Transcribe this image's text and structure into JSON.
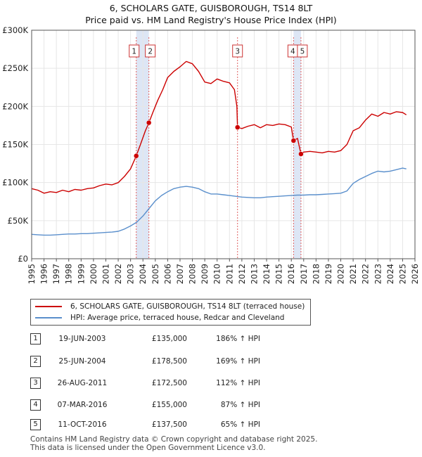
{
  "title_line1": "6, SCHOLARS GATE, GUISBOROUGH, TS14 8LT",
  "title_line2": "Price paid vs. HM Land Registry's House Price Index (HPI)",
  "colors": {
    "price": "#cc0000",
    "hpi": "#5a8fcc",
    "shade": "#dde6f5",
    "grid": "#e6e6e6",
    "vline": "#e06060"
  },
  "legend": {
    "price_label": "6, SCHOLARS GATE, GUISBOROUGH, TS14 8LT (terraced house)",
    "hpi_label": "HPI: Average price, terraced house, Redcar and Cleveland"
  },
  "sales": [
    {
      "num": "1",
      "date": "19-JUN-2003",
      "price": "£135,000",
      "hpi": "186% ↑ HPI"
    },
    {
      "num": "2",
      "date": "25-JUN-2004",
      "price": "£178,500",
      "hpi": "169% ↑ HPI"
    },
    {
      "num": "3",
      "date": "26-AUG-2011",
      "price": "£172,500",
      "hpi": "112% ↑ HPI"
    },
    {
      "num": "4",
      "date": "07-MAR-2016",
      "price": "£155,000",
      "hpi": "87% ↑ HPI"
    },
    {
      "num": "5",
      "date": "11-OCT-2016",
      "price": "£137,500",
      "hpi": "65% ↑ HPI"
    }
  ],
  "footer_line1": "Contains HM Land Registry data © Crown copyright and database right 2025.",
  "footer_line2": "This data is licensed under the Open Government Licence v3.0.",
  "chart_data": {
    "type": "line",
    "title": "Price paid vs. HM Land Registry's House Price Index (HPI)",
    "xlabel": "",
    "ylabel": "",
    "xlim": [
      1995,
      2026
    ],
    "ylim": [
      0,
      300000
    ],
    "x_ticks": [
      "1995",
      "1996",
      "1997",
      "1998",
      "1999",
      "2000",
      "2001",
      "2002",
      "2003",
      "2004",
      "2005",
      "2006",
      "2007",
      "2008",
      "2009",
      "2010",
      "2011",
      "2012",
      "2013",
      "2014",
      "2015",
      "2016",
      "2017",
      "2018",
      "2019",
      "2020",
      "2021",
      "2022",
      "2023",
      "2024",
      "2025",
      "2026"
    ],
    "y_ticks": [
      {
        "value": 0,
        "label": "£0"
      },
      {
        "value": 50000,
        "label": "£50K"
      },
      {
        "value": 100000,
        "label": "£100K"
      },
      {
        "value": 150000,
        "label": "£150K"
      },
      {
        "value": 200000,
        "label": "£200K"
      },
      {
        "value": 250000,
        "label": "£250K"
      },
      {
        "value": 300000,
        "label": "£300K"
      }
    ],
    "shaded_ranges": [
      [
        2003.46,
        2004.48
      ],
      [
        2016.18,
        2016.78
      ]
    ],
    "sale_markers": [
      {
        "label": "1",
        "x": 2003.46,
        "y": 135000
      },
      {
        "label": "2",
        "x": 2004.48,
        "y": 178500
      },
      {
        "label": "3",
        "x": 2011.65,
        "y": 172500
      },
      {
        "label": "4",
        "x": 2016.18,
        "y": 155000
      },
      {
        "label": "5",
        "x": 2016.78,
        "y": 137500
      }
    ],
    "series": [
      {
        "name": "6, SCHOLARS GATE, GUISBOROUGH, TS14 8LT (terraced house)",
        "x": [
          1995.0,
          1995.5,
          1996.0,
          1996.5,
          1997.0,
          1997.5,
          1998.0,
          1998.5,
          1999.0,
          1999.5,
          2000.0,
          2000.5,
          2001.0,
          2001.5,
          2002.0,
          2002.5,
          2003.0,
          2003.46,
          2003.8,
          2004.2,
          2004.48,
          2004.8,
          2005.2,
          2005.6,
          2006.0,
          2006.5,
          2007.0,
          2007.5,
          2008.0,
          2008.5,
          2009.0,
          2009.5,
          2010.0,
          2010.5,
          2011.0,
          2011.4,
          2011.6,
          2011.65,
          2012.0,
          2012.5,
          2013.0,
          2013.5,
          2014.0,
          2014.5,
          2015.0,
          2015.5,
          2016.0,
          2016.18,
          2016.5,
          2016.78,
          2017.0,
          2017.5,
          2018.0,
          2018.5,
          2019.0,
          2019.5,
          2020.0,
          2020.5,
          2021.0,
          2021.5,
          2022.0,
          2022.5,
          2023.0,
          2023.5,
          2024.0,
          2024.5,
          2025.0,
          2025.3
        ],
        "values": [
          92000,
          90000,
          86000,
          88000,
          87000,
          90000,
          88000,
          91000,
          90000,
          92000,
          93000,
          96000,
          98000,
          97000,
          100000,
          108000,
          118000,
          135000,
          150000,
          168000,
          178500,
          192000,
          208000,
          222000,
          238000,
          246000,
          252000,
          259000,
          256000,
          246000,
          232000,
          230000,
          236000,
          233000,
          231000,
          222000,
          200000,
          172500,
          171000,
          174000,
          176000,
          172000,
          176000,
          175000,
          177000,
          176000,
          173000,
          155000,
          158000,
          137500,
          140000,
          141000,
          140000,
          139000,
          141000,
          140000,
          142000,
          150000,
          168000,
          172000,
          182000,
          190000,
          187000,
          192000,
          190000,
          193000,
          192000,
          189000
        ]
      },
      {
        "name": "HPI: Average price, terraced house, Redcar and Cleveland",
        "x": [
          1995.0,
          1995.5,
          1996.0,
          1996.5,
          1997.0,
          1997.5,
          1998.0,
          1998.5,
          1999.0,
          1999.5,
          2000.0,
          2000.5,
          2001.0,
          2001.5,
          2002.0,
          2002.5,
          2003.0,
          2003.5,
          2004.0,
          2004.5,
          2005.0,
          2005.5,
          2006.0,
          2006.5,
          2007.0,
          2007.5,
          2008.0,
          2008.5,
          2009.0,
          2009.5,
          2010.0,
          2010.5,
          2011.0,
          2011.5,
          2012.0,
          2012.5,
          2013.0,
          2013.5,
          2014.0,
          2014.5,
          2015.0,
          2015.5,
          2016.0,
          2016.5,
          2017.0,
          2017.5,
          2018.0,
          2018.5,
          2019.0,
          2019.5,
          2020.0,
          2020.5,
          2021.0,
          2021.5,
          2022.0,
          2022.5,
          2023.0,
          2023.5,
          2024.0,
          2024.5,
          2025.0,
          2025.3
        ],
        "values": [
          32000,
          31500,
          31000,
          31000,
          31500,
          32000,
          32500,
          32500,
          33000,
          33000,
          33500,
          34000,
          34500,
          35000,
          36000,
          39000,
          43000,
          48000,
          56000,
          66000,
          76000,
          83000,
          88000,
          92000,
          94000,
          95000,
          94000,
          92000,
          88000,
          85000,
          85000,
          84000,
          83000,
          82000,
          81000,
          80500,
          80000,
          80000,
          81000,
          81500,
          82000,
          82500,
          83000,
          83500,
          83500,
          84000,
          84000,
          84500,
          85000,
          85500,
          86000,
          89000,
          99000,
          104000,
          108000,
          112000,
          115000,
          114000,
          115000,
          117000,
          119000,
          118000
        ]
      }
    ]
  }
}
